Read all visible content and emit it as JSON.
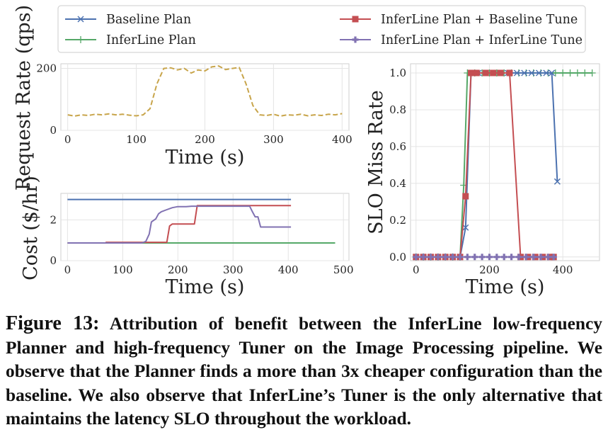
{
  "legend": {
    "items": [
      {
        "label": "Baseline Plan",
        "color": "#4c72b0",
        "marker": "x"
      },
      {
        "label": "InferLine Plan",
        "color": "#55a868",
        "marker": "+"
      },
      {
        "label": "InferLine Plan + Baseline Tune",
        "color": "#c44e52",
        "marker": "square"
      },
      {
        "label": "InferLine Plan + InferLine Tune",
        "color": "#8172b2",
        "marker": "plus"
      }
    ]
  },
  "chart_data": [
    {
      "id": "request-rate",
      "type": "line",
      "ylabel": "Request Rate (qps)",
      "xlabel": "Time (s)",
      "xlim": [
        -10,
        410
      ],
      "ylim": [
        0,
        215
      ],
      "xticks": [
        0,
        100,
        200,
        300,
        400
      ],
      "yticks": [
        0,
        200
      ],
      "series": [
        {
          "name": "Request Rate",
          "color": "#c8a54b",
          "dashed": true,
          "x": [
            0,
            10,
            20,
            30,
            40,
            50,
            60,
            70,
            80,
            90,
            100,
            110,
            120,
            130,
            140,
            150,
            160,
            170,
            180,
            190,
            200,
            210,
            220,
            230,
            240,
            250,
            260,
            270,
            280,
            290,
            300,
            310,
            320,
            330,
            340,
            350,
            360,
            370,
            380,
            390,
            400
          ],
          "y": [
            50,
            46,
            50,
            48,
            52,
            50,
            53,
            50,
            52,
            49,
            47,
            50,
            70,
            150,
            200,
            202,
            195,
            200,
            185,
            195,
            192,
            205,
            208,
            196,
            200,
            203,
            150,
            80,
            50,
            48,
            52,
            46,
            50,
            49,
            52,
            47,
            50,
            48,
            52,
            50,
            54
          ]
        }
      ]
    },
    {
      "id": "cost",
      "type": "line",
      "ylabel": "Cost ($/hr)",
      "xlabel": "Time (s)",
      "xlim": [
        -12,
        510
      ],
      "ylim": [
        0,
        3.3
      ],
      "xticks": [
        0,
        100,
        200,
        300,
        400,
        500
      ],
      "yticks": [
        0,
        2
      ],
      "series": [
        {
          "name": "Baseline Plan",
          "color": "#4c72b0",
          "x": [
            0,
            405
          ],
          "y": [
            3.0,
            3.0
          ]
        },
        {
          "name": "InferLine Plan",
          "color": "#55a868",
          "x": [
            0,
            485
          ],
          "y": [
            0.87,
            0.87
          ]
        },
        {
          "name": "InferLine Plan + Baseline Tune",
          "color": "#c44e52",
          "x": [
            0,
            70,
            70,
            180,
            185,
            190,
            230,
            235,
            405
          ],
          "y": [
            0.87,
            0.87,
            0.9,
            0.9,
            1.7,
            1.8,
            1.8,
            2.7,
            2.7
          ]
        },
        {
          "name": "InferLine Plan + InferLine Tune",
          "color": "#8172b2",
          "x": [
            0,
            135,
            142,
            148,
            152,
            160,
            165,
            170,
            180,
            190,
            200,
            215,
            225,
            230,
            330,
            335,
            340,
            345,
            350,
            405
          ],
          "y": [
            0.87,
            0.87,
            0.95,
            1.3,
            1.9,
            2.05,
            2.3,
            2.4,
            2.5,
            2.6,
            2.65,
            2.65,
            2.67,
            2.67,
            2.67,
            2.4,
            2.15,
            2.15,
            1.65,
            1.65
          ]
        }
      ]
    },
    {
      "id": "slo-miss",
      "type": "line",
      "ylabel": "SLO Miss Rate",
      "xlabel": "Time (s)",
      "xlim": [
        -15,
        500
      ],
      "ylim": [
        -0.02,
        1.05
      ],
      "xticks": [
        0,
        200,
        400
      ],
      "yticks": [
        0.0,
        0.2,
        0.4,
        0.6,
        0.8,
        1.0
      ],
      "series": [
        {
          "name": "InferLine Plan",
          "color": "#55a868",
          "marker": "+",
          "x": [
            0,
            20,
            40,
            60,
            80,
            100,
            120,
            130,
            140,
            160,
            180,
            200,
            220,
            240,
            260,
            280,
            300,
            320,
            340,
            360,
            380,
            400,
            420,
            440,
            460,
            480
          ],
          "y": [
            0,
            0,
            0,
            0,
            0,
            0,
            0,
            0.39,
            1,
            1,
            1,
            1,
            1,
            1,
            1,
            1,
            1,
            1,
            1,
            1,
            1,
            1,
            1,
            1,
            1,
            1
          ]
        },
        {
          "name": "Baseline Plan",
          "color": "#4c72b0",
          "marker": "x",
          "x": [
            0,
            20,
            40,
            60,
            80,
            100,
            120,
            135,
            150,
            170,
            190,
            210,
            230,
            250,
            275,
            295,
            315,
            335,
            355,
            370,
            385
          ],
          "y": [
            0,
            0,
            0,
            0,
            0,
            0,
            0,
            0.16,
            1,
            1,
            1,
            1,
            1,
            1,
            1,
            1,
            1,
            1,
            1,
            1,
            0.41
          ]
        },
        {
          "name": "InferLine Plan + Baseline Tune",
          "color": "#c44e52",
          "marker": "square",
          "x": [
            0,
            20,
            40,
            60,
            80,
            100,
            120,
            135,
            150,
            165,
            190,
            210,
            230,
            255,
            285,
            305,
            325,
            345,
            365,
            375
          ],
          "y": [
            0,
            0,
            0,
            0,
            0,
            0,
            0,
            0.33,
            1,
            1,
            1,
            1,
            1,
            1,
            0,
            0,
            0,
            0,
            0,
            0
          ]
        },
        {
          "name": "InferLine Plan + InferLine Tune",
          "color": "#8172b2",
          "marker": "plus",
          "x": [
            0,
            20,
            40,
            60,
            80,
            100,
            120,
            140,
            160,
            180,
            200,
            220,
            240,
            260,
            280,
            300,
            320,
            340,
            360,
            375
          ],
          "y": [
            0,
            0,
            0,
            0,
            0,
            0,
            0,
            0,
            0,
            0,
            0,
            0,
            0,
            0,
            0,
            0,
            0,
            0,
            0,
            0
          ]
        }
      ]
    }
  ],
  "caption": {
    "label": "Figure 13:",
    "text": "Attribution of benefit between the InferLine low-frequency Planner and high-frequency Tuner on the Image Processing pipeline. We observe that the Planner finds a more than 3x cheaper configuration than the baseline. We also observe that InferLine’s Tuner is the only alternative that maintains the latency SLO throughout the workload."
  }
}
